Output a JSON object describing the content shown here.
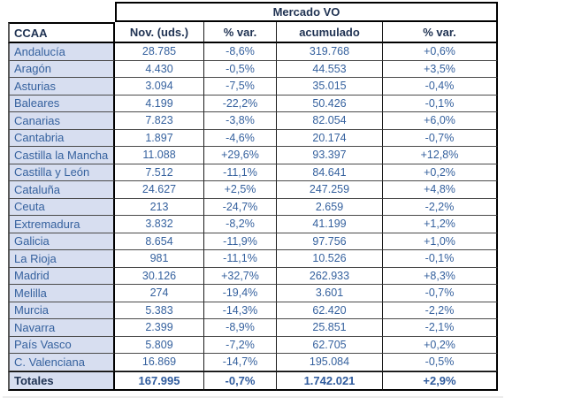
{
  "colors": {
    "label_column_bg": "#d7def0",
    "value_text": "#35619e",
    "header_text": "#1f3252",
    "outer_border": "#000000",
    "row_line": "#4a4a4a"
  },
  "chart_data": {
    "type": "table",
    "title": "Mercado VO",
    "columns": [
      "CCAA",
      "Nov. (uds.)",
      "% var.",
      "acumulado",
      "% var."
    ],
    "rows": [
      {
        "ccaa": "Andalucía",
        "nov": "28.785",
        "var1": "-8,6%",
        "acum": "319.768",
        "var2": "+0,6%"
      },
      {
        "ccaa": "Aragón",
        "nov": "4.430",
        "var1": "-0,5%",
        "acum": "44.553",
        "var2": "+3,5%"
      },
      {
        "ccaa": "Asturias",
        "nov": "3.094",
        "var1": "-7,5%",
        "acum": "35.015",
        "var2": "-0,4%"
      },
      {
        "ccaa": "Baleares",
        "nov": "4.199",
        "var1": "-22,2%",
        "acum": "50.426",
        "var2": "-0,1%"
      },
      {
        "ccaa": "Canarias",
        "nov": "7.823",
        "var1": "-3,8%",
        "acum": "82.054",
        "var2": "+6,0%"
      },
      {
        "ccaa": "Cantabria",
        "nov": "1.897",
        "var1": "-4,6%",
        "acum": "20.174",
        "var2": "-0,7%"
      },
      {
        "ccaa": "Castilla la Mancha",
        "nov": "11.088",
        "var1": "+29,6%",
        "acum": "93.397",
        "var2": "+12,8%"
      },
      {
        "ccaa": "Castilla y León",
        "nov": "7.512",
        "var1": "-11,1%",
        "acum": "84.641",
        "var2": "+0,2%"
      },
      {
        "ccaa": "Cataluña",
        "nov": "24.627",
        "var1": "+2,5%",
        "acum": "247.259",
        "var2": "+4,8%"
      },
      {
        "ccaa": "Ceuta",
        "nov": "213",
        "var1": "-24,7%",
        "acum": "2.659",
        "var2": "-2,2%"
      },
      {
        "ccaa": "Extremadura",
        "nov": "3.832",
        "var1": "-8,2%",
        "acum": "41.199",
        "var2": "+1,2%"
      },
      {
        "ccaa": "Galicia",
        "nov": "8.654",
        "var1": "-11,9%",
        "acum": "97.756",
        "var2": "+1,0%"
      },
      {
        "ccaa": "La Rioja",
        "nov": "981",
        "var1": "-11,1%",
        "acum": "10.526",
        "var2": "-0,1%"
      },
      {
        "ccaa": "Madrid",
        "nov": "30.126",
        "var1": "+32,7%",
        "acum": "262.933",
        "var2": "+8,3%"
      },
      {
        "ccaa": "Melilla",
        "nov": "274",
        "var1": "-19,4%",
        "acum": "3.601",
        "var2": "-0,7%"
      },
      {
        "ccaa": "Murcia",
        "nov": "5.383",
        "var1": "-14,3%",
        "acum": "62.420",
        "var2": "-2,2%"
      },
      {
        "ccaa": "Navarra",
        "nov": "2.399",
        "var1": "-8,9%",
        "acum": "25.851",
        "var2": "-2,1%"
      },
      {
        "ccaa": "País Vasco",
        "nov": "5.809",
        "var1": "-7,2%",
        "acum": "62.705",
        "var2": "+0,2%"
      },
      {
        "ccaa": "C. Valenciana",
        "nov": "16.869",
        "var1": "-14,7%",
        "acum": "195.084",
        "var2": "-0,5%"
      }
    ],
    "totals": {
      "ccaa": "Totales",
      "nov": "167.995",
      "var1": "-0,7%",
      "acum": "1.742.021",
      "var2": "+2,9%"
    }
  }
}
